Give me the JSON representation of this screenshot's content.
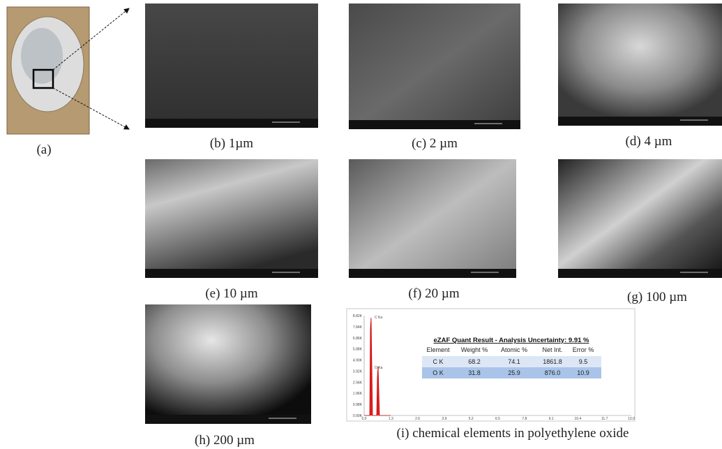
{
  "panels": [
    {
      "caption": "(a)"
    },
    {
      "caption": "(b) 1µm"
    },
    {
      "caption": "(c) 2 µm"
    },
    {
      "caption": "(d) 4 µm"
    },
    {
      "caption": "(e) 10 µm"
    },
    {
      "caption": "(f) 20 µm"
    },
    {
      "caption": "(g) 100 µm"
    },
    {
      "caption": "(h) 200 µm"
    },
    {
      "caption": "(i) chemical elements in polyethylene oxide"
    }
  ],
  "spectrum": {
    "peaks": [
      "C Ka",
      "O Ka"
    ],
    "yticks": [
      "8.82K",
      "7.84K",
      "6.86K",
      "5.88K",
      "4.90K",
      "3.92K",
      "2.94K",
      "1.96K",
      "0.98K",
      "0.00K"
    ],
    "xticks": [
      "0.0",
      "1.3",
      "2.6",
      "3.9",
      "5.2",
      "6.5",
      "7.8",
      "9.1",
      "10.4",
      "11.7",
      "13.0"
    ],
    "table": {
      "title": "eZAF Quant Result - Analysis Uncertainty: 9.91 %",
      "header": [
        "Element",
        "Weight %",
        "Atomic %",
        "Net Int.",
        "Error %"
      ],
      "rows": [
        [
          "C K",
          "68.2",
          "74.1",
          "1861.8",
          "9.5"
        ],
        [
          "O K",
          "31.8",
          "25.9",
          "876.0",
          "10.9"
        ]
      ]
    }
  }
}
